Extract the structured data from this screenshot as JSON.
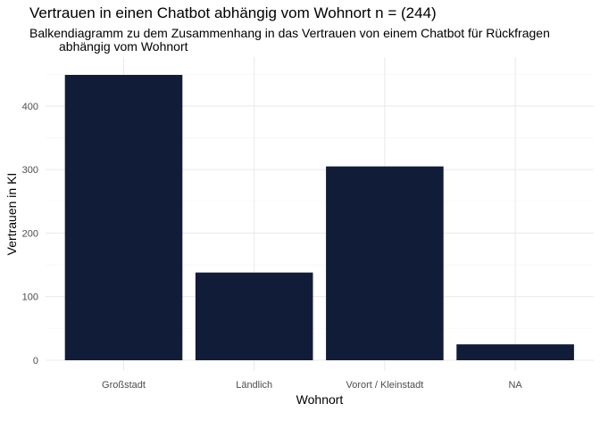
{
  "chart_data": {
    "type": "bar",
    "title": "Vertrauen in einen Chatbot abhängig vom Wohnort n = (244)",
    "subtitle_lines": [
      "Balkendiagramm zu dem Zusammenhang in das Vertrauen von einem Chatbot für Rückfragen",
      "abhängig vom Wohnort"
    ],
    "xlabel": "Wohnort",
    "ylabel": "Vertrauen in KI",
    "categories": [
      "Großstadt",
      "Ländlich",
      "Vorort / Kleinstadt",
      "NA"
    ],
    "values": [
      449,
      138,
      305,
      25
    ],
    "ylim": [
      0,
      449
    ],
    "yticks": [
      0,
      100,
      200,
      300,
      400
    ],
    "bar_color": "#111c38",
    "grid": true
  }
}
